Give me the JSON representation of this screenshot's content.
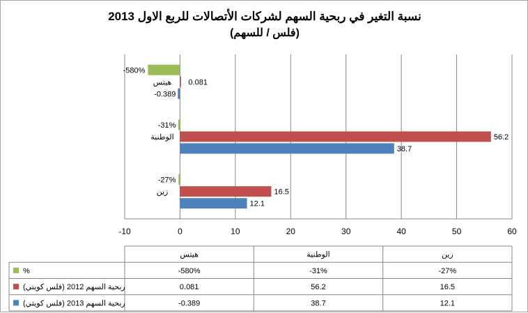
{
  "chart_data": {
    "type": "bar",
    "orientation": "horizontal",
    "title": "نسبة التغير في ربحية السهم لشركات الأتصالات للربع الاول 2013",
    "subtitle": "(فلس / للسهم)",
    "categories": [
      "هيتس",
      "الوطنية",
      "زين"
    ],
    "series": [
      {
        "name": "%",
        "display": [
          "-580%",
          "-31%",
          "-27%"
        ],
        "values": [
          -5.8,
          -0.31,
          -0.27
        ],
        "color": "#9bbb59"
      },
      {
        "name": "ربحية السهم 2012 (فلس كويتي)",
        "display": [
          "0.081",
          "56.2",
          "16.5"
        ],
        "values": [
          0.081,
          56.2,
          16.5
        ],
        "color": "#c0504d"
      },
      {
        "name": "ربحية السهم 2013 (فلس كويتي)",
        "display": [
          "-0.389",
          "38.7",
          "12.1"
        ],
        "values": [
          -0.389,
          38.7,
          12.1
        ],
        "color": "#4f81bd"
      }
    ],
    "xlim": [
      -10,
      60
    ],
    "ticks": [
      "-10",
      "0",
      "10",
      "20",
      "30",
      "40",
      "50",
      "60"
    ],
    "grid": true,
    "legend": "data-table"
  }
}
